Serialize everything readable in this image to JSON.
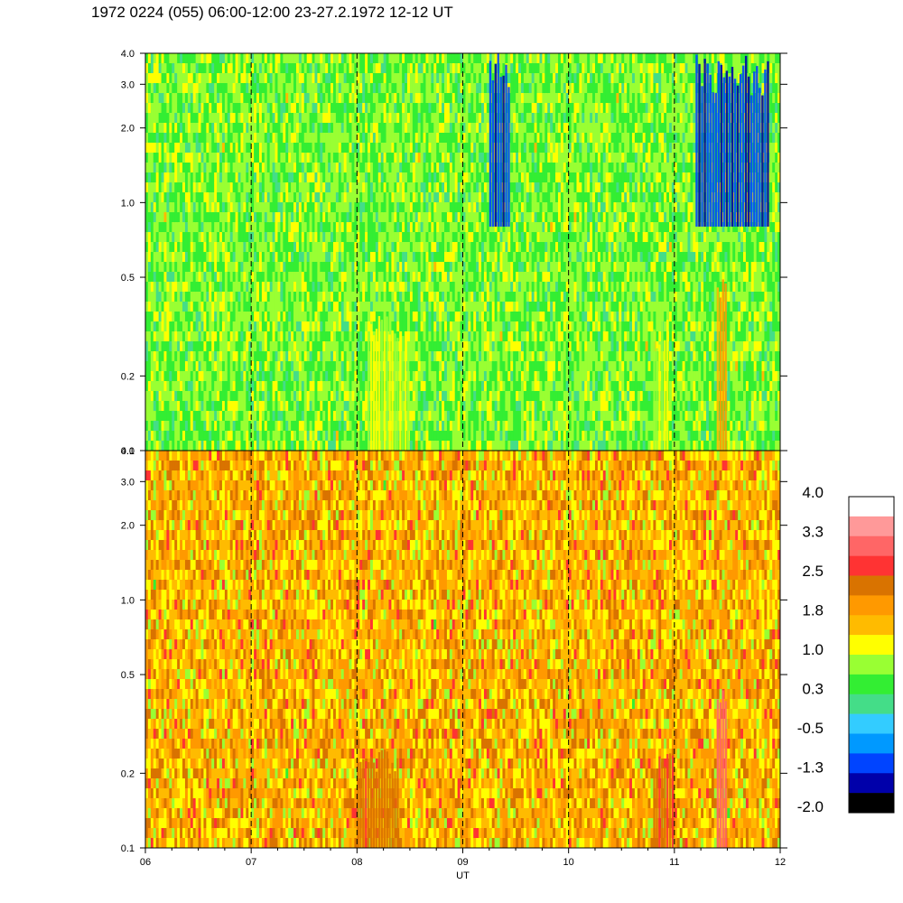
{
  "title": "1972 0224 (055) 06:00-12:00 23-27.2.1972  12-12 UT",
  "chart_data": {
    "type": "heatmap",
    "xlabel": "UT",
    "x_ticks": [
      "06",
      "07",
      "08",
      "09",
      "10",
      "11",
      "12"
    ],
    "xlim": [
      6,
      12
    ],
    "x_dashed_lines": [
      7,
      8,
      9,
      10,
      11
    ],
    "y_scale": "log",
    "ylim": [
      0.1,
      4.0
    ],
    "y_ticks": [
      "0.1",
      "0.2",
      "0.5",
      "1.0",
      "2.0",
      "3.0",
      "4.0"
    ],
    "y_tick_values": [
      0.1,
      0.2,
      0.5,
      1.0,
      2.0,
      3.0,
      4.0
    ],
    "panels": [
      {
        "name": "upper",
        "dominant_levels": [
          0.3,
          1.0
        ],
        "features": [
          {
            "x_range": [
              8.1,
              8.5
            ],
            "y_range": [
              0.1,
              0.35
            ],
            "level": 1.0
          },
          {
            "x_range": [
              10.8,
              10.95
            ],
            "y_range": [
              0.1,
              0.35
            ],
            "level": 1.0
          },
          {
            "x_range": [
              11.4,
              11.5
            ],
            "y_range": [
              0.1,
              0.5
            ],
            "level": 1.8
          },
          {
            "x_range": [
              9.25,
              9.45
            ],
            "y_range": [
              0.8,
              4.0
            ],
            "level": -1.3
          },
          {
            "x_range": [
              11.2,
              11.9
            ],
            "y_range": [
              0.8,
              4.0
            ],
            "level": -1.3
          }
        ]
      },
      {
        "name": "lower",
        "dominant_levels": [
          1.0,
          1.8,
          2.5
        ],
        "features": [
          {
            "x_range": [
              8.0,
              8.4
            ],
            "y_range": [
              0.1,
              0.25
            ],
            "level": 2.5
          },
          {
            "x_range": [
              10.8,
              11.0
            ],
            "y_range": [
              0.1,
              0.25
            ],
            "level": 2.5
          },
          {
            "x_range": [
              11.4,
              11.5
            ],
            "y_range": [
              0.1,
              0.5
            ],
            "level": 3.3
          }
        ]
      }
    ],
    "colorbar": {
      "labels": [
        "4.0",
        "3.3",
        "2.5",
        "1.8",
        "1.0",
        "0.3",
        "-0.5",
        "-1.3",
        "-2.0"
      ],
      "colors": [
        "#ffffff",
        "#ff9999",
        "#ff6666",
        "#ff3333",
        "#d97300",
        "#ff9900",
        "#ffbb00",
        "#ffff00",
        "#99ff33",
        "#33ee33",
        "#44dd88",
        "#33ccff",
        "#0099ff",
        "#0044ff",
        "#0000aa",
        "#000000"
      ]
    }
  }
}
